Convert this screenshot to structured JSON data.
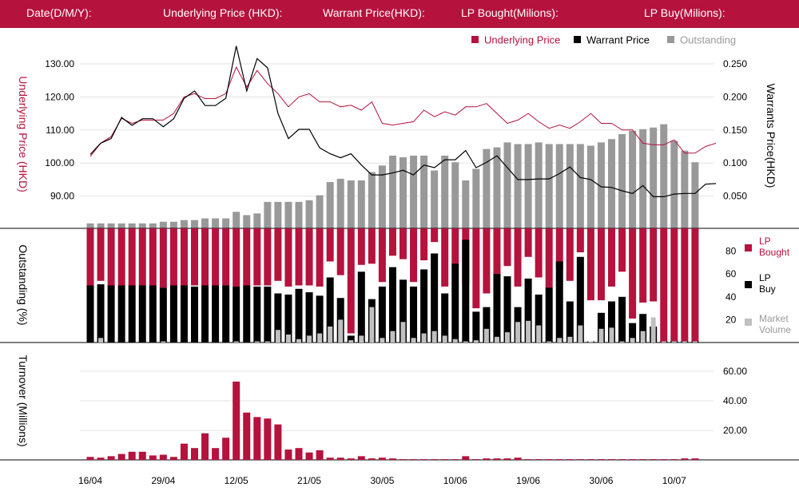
{
  "header": {
    "date_label": "Date(D/M/Y):",
    "underlying_label": "Underlying Price (HKD):",
    "warrant_label": "Warrant  Price(HKD):",
    "lp_bought_label": "LP Bought(Milions):",
    "lp_buy_label": "LP Buy(Milions):"
  },
  "legend": {
    "underlying": "Underlying Price",
    "warrant": "Warrant  Price",
    "outstanding": "Outstanding",
    "lp_bought": "LP Bought",
    "lp_buy": "LP Buy",
    "market_volume": "Market Volume"
  },
  "colors": {
    "brand": "#b5123d",
    "warrant": "#000000",
    "outstanding": "#999999",
    "market_volume": "#c0c0c0",
    "grid": "#e3e3e3"
  },
  "chart_data": [
    {
      "type": "line",
      "name": "price-chart",
      "ylabel_left": "Underlying Price (HKD)",
      "ylabel_right": "Warrants  Price(HKD)",
      "ylim_left": [
        80,
        130
      ],
      "ylim_right": [
        0,
        0.25
      ],
      "yticks_left": [
        "130.00",
        "120.00",
        "110.00",
        "100.00",
        "90.00"
      ],
      "yticks_right": [
        "0.250",
        "0.200",
        "0.150",
        "0.100",
        "0.050"
      ],
      "series": [
        {
          "name": "Underlying Price",
          "axis": "left",
          "values": [
            102,
            106,
            108,
            113.5,
            112,
            113,
            113,
            113,
            115,
            120,
            121,
            119.5,
            119.5,
            121,
            129,
            123,
            128,
            124,
            121,
            117,
            120,
            121,
            118.5,
            118.5,
            117,
            117.5,
            116,
            118.5,
            112,
            111.5,
            112,
            112.5,
            116,
            114,
            115.5,
            114.5,
            117,
            117,
            118,
            115,
            112,
            113,
            115,
            112.5,
            110.5,
            111.5,
            110.5,
            112.5,
            115,
            112,
            112,
            110,
            110,
            106,
            105.5,
            105.5,
            107,
            103,
            103,
            105,
            106
          ]
        },
        {
          "name": "Warrant  Price",
          "axis": "right",
          "values": [
            0.113,
            0.13,
            0.137,
            0.169,
            0.157,
            0.167,
            0.167,
            0.155,
            0.167,
            0.198,
            0.209,
            0.187,
            0.187,
            0.198,
            0.277,
            0.209,
            0.258,
            0.244,
            0.175,
            0.137,
            0.151,
            0.151,
            0.123,
            0.114,
            0.108,
            0.114,
            0.097,
            0.082,
            0.082,
            0.085,
            0.089,
            0.082,
            0.097,
            0.093,
            0.105,
            0.105,
            0.119,
            0.093,
            0.101,
            0.111,
            0.093,
            0.075,
            0.075,
            0.076,
            0.076,
            0.084,
            0.094,
            0.078,
            0.075,
            0.064,
            0.063,
            0.058,
            0.054,
            0.066,
            0.049,
            0.049,
            0.053,
            0.054,
            0.054,
            0.068,
            0.069
          ]
        }
      ]
    },
    {
      "type": "bar",
      "name": "outstanding-chart",
      "ylabel": "Outstanding (%)",
      "ylim": [
        0,
        100
      ],
      "yticks": [
        "80",
        "60",
        "40",
        "20"
      ],
      "series": [
        {
          "name": "Outstanding",
          "values": [
            3,
            3,
            3,
            3,
            3,
            3,
            3,
            4,
            4,
            5,
            5,
            6,
            6,
            6,
            10,
            8,
            9,
            16,
            16,
            16,
            16,
            17,
            20,
            28,
            30,
            29,
            29,
            34,
            38,
            44,
            43,
            44,
            44,
            35,
            44,
            40,
            29,
            36,
            48,
            49,
            52,
            51,
            51,
            52,
            51,
            51,
            51,
            51,
            50,
            52,
            54,
            57,
            59,
            60,
            61,
            63,
            53,
            47,
            40
          ]
        },
        {
          "name": "LP Bought",
          "values": [
            50,
            46,
            50,
            50,
            50,
            50,
            50,
            52,
            50,
            50,
            50,
            50,
            50,
            50,
            51,
            50,
            50,
            50,
            46,
            51,
            50,
            50,
            51,
            29,
            41,
            92,
            32,
            31,
            47,
            24,
            27,
            47,
            28,
            12,
            51,
            32,
            48,
            70,
            57,
            56,
            33,
            51,
            25,
            43,
            53,
            36,
            46,
            21,
            63,
            63,
            51,
            38,
            79,
            65,
            64,
            99,
            99,
            99,
            99
          ]
        },
        {
          "name": "LP Buy",
          "values": [
            50,
            51,
            50,
            50,
            50,
            50,
            50,
            48,
            50,
            50,
            49,
            50,
            50,
            50,
            49,
            50,
            49,
            49,
            43,
            42,
            47,
            44,
            41,
            57,
            39,
            6,
            62,
            38,
            49,
            66,
            55,
            49,
            64,
            78,
            43,
            69,
            90,
            27,
            31,
            60,
            58,
            31,
            56,
            42,
            48,
            71,
            36,
            75,
            1,
            26,
            36,
            40,
            17,
            25,
            14,
            1,
            1,
            1,
            1
          ]
        },
        {
          "name": "Market Volume",
          "values": [
            0,
            4,
            0,
            0,
            0,
            0,
            0,
            1,
            0,
            0,
            0,
            0,
            0,
            0,
            1,
            0,
            1,
            1,
            11,
            7,
            3,
            6,
            8,
            14,
            20,
            2,
            6,
            31,
            4,
            10,
            18,
            4,
            8,
            10,
            6,
            3,
            1,
            2,
            12,
            5,
            9,
            18,
            19,
            15,
            1,
            4,
            5,
            15,
            1,
            12,
            13,
            1,
            4,
            10,
            22,
            1,
            1,
            1,
            1
          ]
        }
      ]
    },
    {
      "type": "bar",
      "name": "turnover-chart",
      "ylabel": "Turnover (Millions)",
      "ylim": [
        0,
        60
      ],
      "yticks": [
        "60.00",
        "40.00",
        "20.00"
      ],
      "categories_ticks": [
        "16/04",
        "29/04",
        "12/05",
        "21/05",
        "30/05",
        "10/06",
        "19/06",
        "30/06",
        "10/07"
      ],
      "series": [
        {
          "name": "Turnover",
          "values": [
            2,
            1.5,
            2.5,
            4,
            5.5,
            5.5,
            3,
            3.5,
            2,
            11,
            8,
            18,
            8,
            15,
            53,
            32,
            29,
            28,
            24,
            7,
            8,
            5,
            6.5,
            1.5,
            1.5,
            1,
            2.5,
            1,
            1.5,
            1,
            0.5,
            0.5,
            0.5,
            0.5,
            0.5,
            0.5,
            2.5,
            0.5,
            1,
            1,
            1,
            1.5,
            0.5,
            0.5,
            0.5,
            0.5,
            0.5,
            0.5,
            0.5,
            0.5,
            0.5,
            0.5,
            0.5,
            0.5,
            0.5,
            0.5,
            0.5,
            1,
            1
          ]
        }
      ]
    }
  ]
}
